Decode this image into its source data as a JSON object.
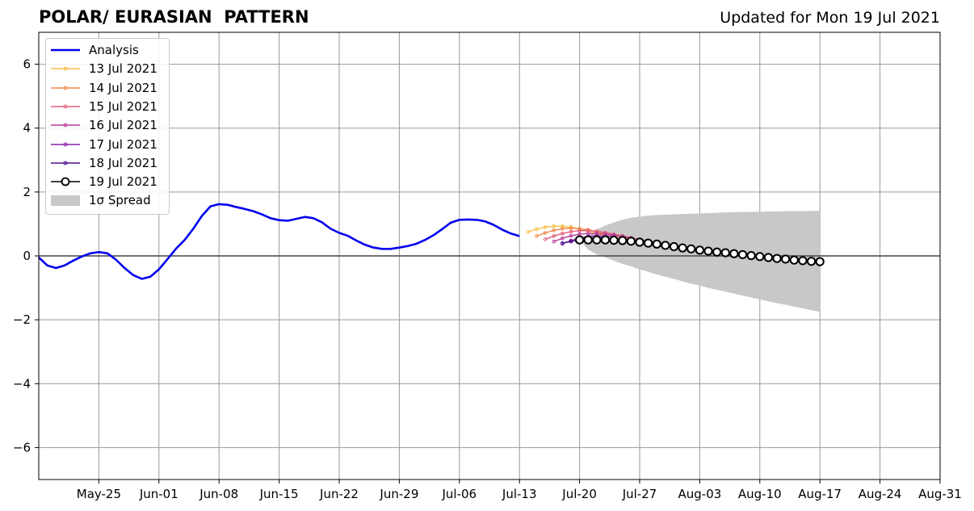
{
  "header": {
    "title": "POLAR/ EURASIAN  PATTERN",
    "updated": "Updated for Mon 19 Jul 2021"
  },
  "colors": {
    "analysis": "#0000ee",
    "observed_marker_fill": "#ffffff",
    "spread": "#c8c8c8",
    "grid": "#999999",
    "zero_line": "#444444"
  },
  "chart_data": {
    "type": "line",
    "title": "POLAR/ EURASIAN  PATTERN",
    "xlabel": "",
    "ylabel": "",
    "x_range": [
      "2021-05-18",
      "2021-08-31"
    ],
    "ylim": [
      -7,
      7
    ],
    "grid": true,
    "legend_position": "top-left",
    "x_ticks": [
      {
        "date": "2021-05-25",
        "label": "May-25"
      },
      {
        "date": "2021-06-01",
        "label": "Jun-01"
      },
      {
        "date": "2021-06-08",
        "label": "Jun-08"
      },
      {
        "date": "2021-06-15",
        "label": "Jun-15"
      },
      {
        "date": "2021-06-22",
        "label": "Jun-22"
      },
      {
        "date": "2021-06-29",
        "label": "Jun-29"
      },
      {
        "date": "2021-07-06",
        "label": "Jul-06"
      },
      {
        "date": "2021-07-13",
        "label": "Jul-13"
      },
      {
        "date": "2021-07-20",
        "label": "Jul-20"
      },
      {
        "date": "2021-07-27",
        "label": "Jul-27"
      },
      {
        "date": "2021-08-03",
        "label": "Aug-03"
      },
      {
        "date": "2021-08-10",
        "label": "Aug-10"
      },
      {
        "date": "2021-08-17",
        "label": "Aug-17"
      },
      {
        "date": "2021-08-24",
        "label": "Aug-24"
      },
      {
        "date": "2021-08-31",
        "label": "Aug-31"
      }
    ],
    "y_ticks": [
      {
        "value": 6,
        "label": "6"
      },
      {
        "value": 4,
        "label": "4"
      },
      {
        "value": 2,
        "label": "2"
      },
      {
        "value": 0,
        "label": "0"
      },
      {
        "value": -2,
        "label": "−2"
      },
      {
        "value": -4,
        "label": "−4"
      },
      {
        "value": -6,
        "label": "−6"
      }
    ],
    "analysis": {
      "name": "Analysis",
      "color": "#0000ee",
      "start": "2021-05-18",
      "values": [
        -0.05,
        -0.3,
        -0.38,
        -0.3,
        -0.15,
        -0.02,
        0.08,
        0.12,
        0.08,
        -0.12,
        -0.38,
        -0.6,
        -0.72,
        -0.65,
        -0.42,
        -0.1,
        0.23,
        0.5,
        0.85,
        1.25,
        1.55,
        1.62,
        1.6,
        1.53,
        1.47,
        1.4,
        1.3,
        1.18,
        1.12,
        1.1,
        1.16,
        1.22,
        1.18,
        1.05,
        0.85,
        0.72,
        0.63,
        0.48,
        0.35,
        0.26,
        0.22,
        0.22,
        0.26,
        0.31,
        0.38,
        0.5,
        0.65,
        0.84,
        1.04,
        1.13,
        1.14,
        1.13,
        1.08,
        0.97,
        0.82,
        0.7,
        0.62
      ]
    },
    "forecasts": [
      {
        "name": "13 Jul 2021",
        "color": "#f7c04a",
        "start": "2021-07-14",
        "values": [
          0.75,
          0.84,
          0.9,
          0.93,
          0.93,
          0.9,
          0.85,
          0.78,
          0.7,
          0.63,
          0.57,
          0.5,
          0.45,
          0.4,
          0.36,
          0.32,
          0.28,
          0.25,
          0.22,
          0.2,
          0.18
        ]
      },
      {
        "name": "14 Jul 2021",
        "color": "#f08a4b",
        "start": "2021-07-15",
        "values": [
          0.62,
          0.72,
          0.8,
          0.85,
          0.87,
          0.85,
          0.82,
          0.76,
          0.7,
          0.64,
          0.58,
          0.52,
          0.47,
          0.42,
          0.37,
          0.33,
          0.29,
          0.26,
          0.23
        ]
      },
      {
        "name": "15 Jul 2021",
        "color": "#e0607a",
        "start": "2021-07-16",
        "values": [
          0.52,
          0.62,
          0.7,
          0.76,
          0.79,
          0.79,
          0.77,
          0.73,
          0.68,
          0.63,
          0.57,
          0.52,
          0.47,
          0.42,
          0.38
        ]
      },
      {
        "name": "16 Jul 2021",
        "color": "#bb3b9a",
        "start": "2021-07-17",
        "values": [
          0.45,
          0.55,
          0.63,
          0.68,
          0.7,
          0.7,
          0.68,
          0.65,
          0.61,
          0.56
        ]
      },
      {
        "name": "17 Jul 2021",
        "color": "#8a22a8",
        "start": "2021-07-18",
        "values": [
          0.38,
          0.48,
          0.56,
          0.61,
          0.63,
          0.62,
          0.6
        ]
      },
      {
        "name": "18 Jul 2021",
        "color": "#4b0f8f",
        "start": "2021-07-18",
        "values": [
          0.4,
          0.45,
          0.5,
          0.55,
          0.57,
          0.58
        ]
      }
    ],
    "current_forecast": {
      "name": "19 Jul 2021",
      "color": "#000000",
      "start": "2021-07-20",
      "values": [
        0.5,
        0.5,
        0.5,
        0.5,
        0.49,
        0.48,
        0.46,
        0.43,
        0.4,
        0.37,
        0.33,
        0.29,
        0.25,
        0.22,
        0.18,
        0.15,
        0.12,
        0.1,
        0.07,
        0.04,
        0.01,
        -0.02,
        -0.05,
        -0.08,
        -0.1,
        -0.13,
        -0.15,
        -0.17,
        -0.18
      ]
    },
    "spread": {
      "name": "1σ Spread",
      "color": "#c8c8c8",
      "start": "2021-07-20",
      "upper": [
        0.5,
        0.68,
        0.83,
        0.95,
        1.05,
        1.13,
        1.19,
        1.23,
        1.26,
        1.28,
        1.29,
        1.3,
        1.31,
        1.32,
        1.33,
        1.34,
        1.35,
        1.36,
        1.37,
        1.37,
        1.38,
        1.38,
        1.39,
        1.39,
        1.4,
        1.4,
        1.4,
        1.41,
        1.41
      ],
      "lower": [
        0.5,
        0.2,
        0.05,
        -0.05,
        -0.15,
        -0.25,
        -0.33,
        -0.42,
        -0.5,
        -0.58,
        -0.65,
        -0.72,
        -0.8,
        -0.87,
        -0.93,
        -1.0,
        -1.06,
        -1.12,
        -1.18,
        -1.24,
        -1.3,
        -1.36,
        -1.42,
        -1.48,
        -1.53,
        -1.59,
        -1.64,
        -1.7,
        -1.75
      ]
    },
    "legend": [
      {
        "label": "Analysis",
        "style": "thick-line",
        "color": "#0000ee"
      },
      {
        "label": "13 Jul 2021",
        "style": "line-dot",
        "color": "#f7c04a"
      },
      {
        "label": "14 Jul 2021",
        "style": "line-dot",
        "color": "#f08a4b"
      },
      {
        "label": "15 Jul 2021",
        "style": "line-dot",
        "color": "#e0607a"
      },
      {
        "label": "16 Jul 2021",
        "style": "line-dot",
        "color": "#bb3b9a"
      },
      {
        "label": "17 Jul 2021",
        "style": "line-dot",
        "color": "#8a22a8"
      },
      {
        "label": "18 Jul 2021",
        "style": "line-dot",
        "color": "#4b0f8f"
      },
      {
        "label": "19 Jul 2021",
        "style": "line-circle",
        "color": "#000000"
      },
      {
        "label": "1σ Spread",
        "style": "patch",
        "color": "#c8c8c8"
      }
    ]
  }
}
